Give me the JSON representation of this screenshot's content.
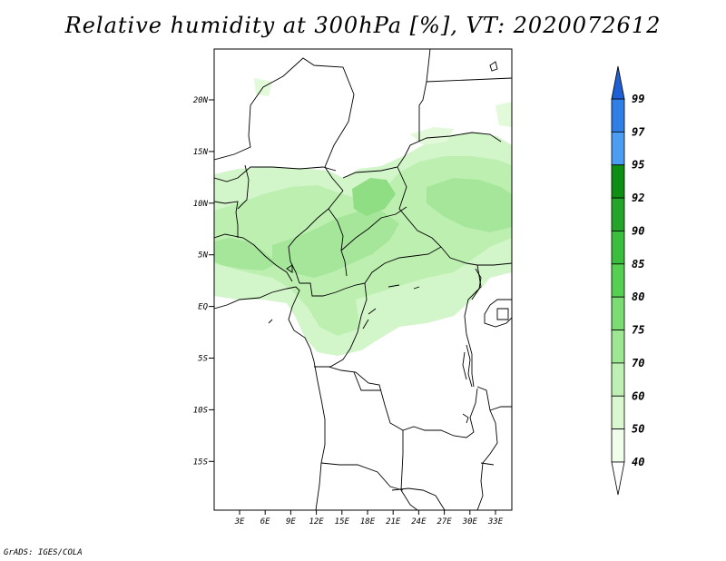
{
  "title": "Relative humidity at 300hPa [%], VT: 2020072612",
  "lat_labels": [
    "20N",
    "15N",
    "10N",
    "5N",
    "EQ",
    "5S",
    "10S",
    "15S"
  ],
  "lon_labels": [
    "3E",
    "6E",
    "9E",
    "12E",
    "15E",
    "18E",
    "21E",
    "24E",
    "27E",
    "30E",
    "33E"
  ],
  "colorbar": {
    "levels": [
      "99",
      "97",
      "95",
      "92",
      "90",
      "85",
      "80",
      "75",
      "70",
      "60",
      "50",
      "40"
    ],
    "colors": [
      "#1e5fd6",
      "#2f7fe6",
      "#4a9df2",
      "#0e8f14",
      "#24a52a",
      "#3bbd3d",
      "#55d052",
      "#7bdc74",
      "#9de692",
      "#bdf0b2",
      "#d9f8cf",
      "#effdea"
    ]
  },
  "footer": "GrADS: IGES/COLA"
}
